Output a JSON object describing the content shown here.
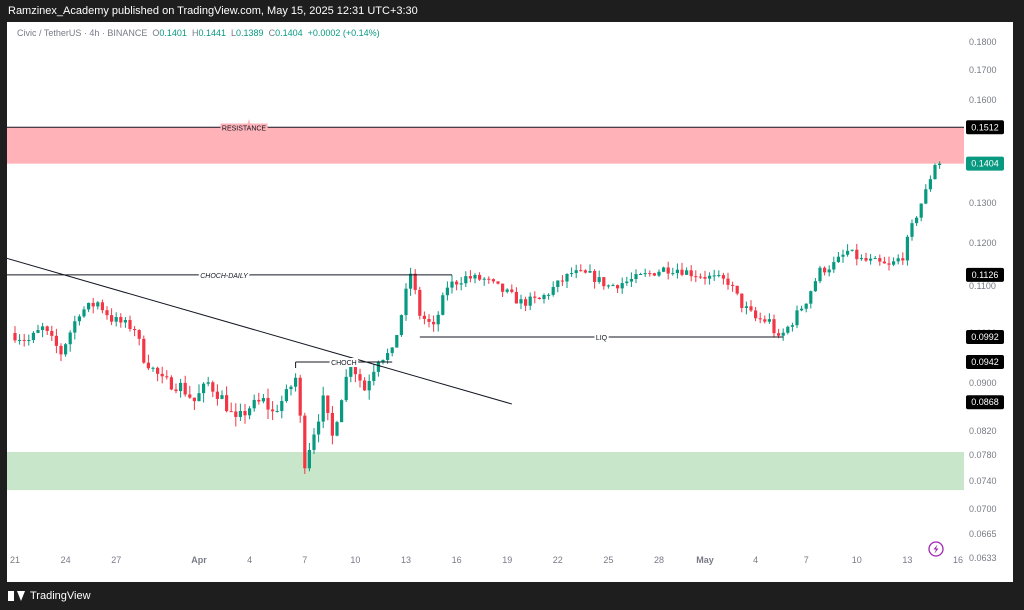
{
  "header": {
    "published": "Ramzinex_Academy published on TradingView.com, May 15, 2025 12:31 UTC+3:30"
  },
  "legend": {
    "symbol": "Civic / TetherUS · 4h · BINANCE",
    "open_key": "O",
    "open": "0.1401",
    "high_key": "H",
    "high": "0.1441",
    "low_key": "L",
    "low": "0.1389",
    "close_key": "C",
    "close": "0.1404",
    "change": "+0.0002 (+0.14%)"
  },
  "footer": {
    "brand": "TradingView"
  },
  "colors": {
    "up": "#089981",
    "down": "#f23645",
    "resistance_zone": "#ffb3b8",
    "support_zone": "#c8e6c9",
    "price_tag": "#089981",
    "level_tag": "#000000"
  },
  "icons": {
    "lightning": "lightning-icon"
  },
  "chart_data": {
    "type": "candlestick",
    "price_axis": {
      "ticks": [
        "0.1800",
        "0.1700",
        "0.1600",
        "0.1500",
        "0.1400",
        "0.1300",
        "0.1200",
        "0.1100",
        "0.1000",
        "0.0900",
        "0.0820",
        "0.0780",
        "0.0740",
        "0.0700",
        "0.0665",
        "0.0633"
      ]
    },
    "time_axis": {
      "labels": [
        "21",
        "24",
        "27",
        "Apr",
        "4",
        "7",
        "10",
        "13",
        "16",
        "19",
        "22",
        "25",
        "28",
        "May",
        "4",
        "7",
        "10",
        "13",
        "16"
      ],
      "bold": [
        "Apr",
        "May"
      ]
    },
    "zones": [
      {
        "name": "resistance",
        "label": "RESISTANCE",
        "top": 0.1512,
        "bottom": 0.1404
      },
      {
        "name": "support",
        "label": "",
        "top": 0.0785,
        "bottom": 0.0727
      }
    ],
    "levels": [
      {
        "name": "choch-daily",
        "label": "CHOCH-DAILY",
        "price": 0.1126,
        "t_start": -2,
        "t_end": 95
      },
      {
        "name": "liq",
        "label": "LIQ",
        "price": 0.0992,
        "t_start": 88,
        "t_end": 167
      },
      {
        "name": "choch",
        "label": "CHOCH",
        "price": 0.0942,
        "t_start": 61,
        "t_end": 82
      }
    ],
    "price_tags": [
      {
        "value": "0.1512",
        "kind": "level"
      },
      {
        "value": "0.1404",
        "kind": "last"
      },
      {
        "value": "0.1126",
        "kind": "level"
      },
      {
        "value": "0.0992",
        "kind": "level"
      },
      {
        "value": "0.0942",
        "kind": "level"
      },
      {
        "value": "0.0868",
        "kind": "level"
      }
    ],
    "trendline": {
      "t1": -2,
      "p1": 0.1165,
      "t2": 108,
      "p2": 0.0865
    },
    "path_points": [
      [
        0,
        0.1
      ],
      [
        4,
        0.0985
      ],
      [
        7,
        0.101
      ],
      [
        11,
        0.096
      ],
      [
        15,
        0.1045
      ],
      [
        19,
        0.1065
      ],
      [
        22,
        0.103
      ],
      [
        27,
        0.101
      ],
      [
        29,
        0.095
      ],
      [
        33,
        0.0905
      ],
      [
        37,
        0.0895
      ],
      [
        40,
        0.087
      ],
      [
        43,
        0.09
      ],
      [
        46,
        0.0875
      ],
      [
        49,
        0.0835
      ],
      [
        52,
        0.086
      ],
      [
        55,
        0.087
      ],
      [
        57,
        0.085
      ],
      [
        60,
        0.088
      ],
      [
        62,
        0.091
      ],
      [
        64,
        0.077
      ],
      [
        66,
        0.082
      ],
      [
        68,
        0.087
      ],
      [
        70,
        0.081
      ],
      [
        72,
        0.088
      ],
      [
        74,
        0.094
      ],
      [
        77,
        0.089
      ],
      [
        80,
        0.095
      ],
      [
        83,
        0.096
      ],
      [
        85,
        0.104
      ],
      [
        87,
        0.113
      ],
      [
        89,
        0.104
      ],
      [
        92,
        0.101
      ],
      [
        95,
        0.11
      ],
      [
        99,
        0.112
      ],
      [
        103,
        0.1115
      ],
      [
        107,
        0.109
      ],
      [
        111,
        0.1065
      ],
      [
        115,
        0.107
      ],
      [
        118,
        0.1095
      ],
      [
        122,
        0.113
      ],
      [
        126,
        0.1125
      ],
      [
        130,
        0.11
      ],
      [
        134,
        0.111
      ],
      [
        138,
        0.1125
      ],
      [
        142,
        0.114
      ],
      [
        145,
        0.114
      ],
      [
        148,
        0.113
      ],
      [
        152,
        0.112
      ],
      [
        156,
        0.111
      ],
      [
        159,
        0.106
      ],
      [
        162,
        0.103
      ],
      [
        165,
        0.1025
      ],
      [
        167,
        0.0985
      ],
      [
        170,
        0.1025
      ],
      [
        173,
        0.107
      ],
      [
        176,
        0.1135
      ],
      [
        179,
        0.115
      ],
      [
        182,
        0.118
      ],
      [
        185,
        0.116
      ],
      [
        188,
        0.1155
      ],
      [
        191,
        0.1145
      ],
      [
        194,
        0.117
      ],
      [
        196,
        0.124
      ],
      [
        199,
        0.133
      ],
      [
        201,
        0.1404
      ]
    ]
  }
}
